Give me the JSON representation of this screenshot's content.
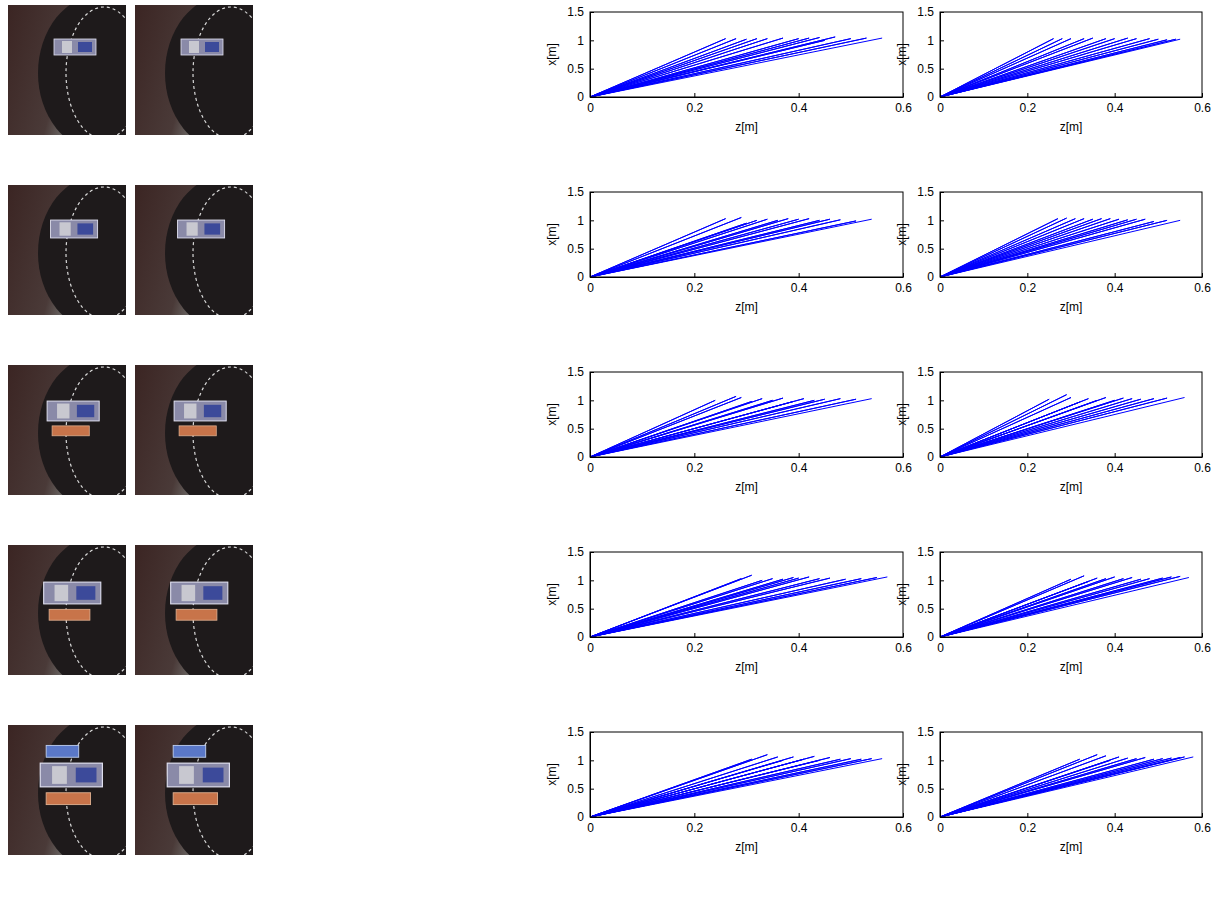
{
  "chart_data": [
    {
      "type": "line",
      "color": "#0000ff",
      "xlabel": "z[m]",
      "ylabel": "x[m]",
      "xlim": [
        0,
        0.6
      ],
      "ylim": [
        0,
        1.5
      ],
      "xticks": [
        0,
        0.2,
        0.4,
        0.6
      ],
      "yticks": [
        0,
        0.5,
        1,
        1.5
      ],
      "x": [
        0,
        0.26,
        0,
        0.28,
        0,
        0.3,
        0,
        0.32,
        0,
        0.34,
        0,
        0.37,
        0,
        0.4,
        0,
        0.42,
        0,
        0.44,
        0,
        0.47,
        0,
        0.45,
        0,
        0.5,
        0,
        0.53,
        0,
        0.56
      ],
      "values": [
        0,
        1.03,
        0,
        1.03,
        0,
        1.02,
        0,
        1.03,
        0,
        1.03,
        0,
        1.04,
        0,
        1.03,
        0,
        1.04,
        0,
        1.05,
        0,
        1.06,
        0,
        1,
        0,
        1.03,
        0,
        1.04,
        0,
        1.04
      ]
    },
    {
      "type": "line",
      "color": "#0000ff",
      "xlabel": "z[m]",
      "ylabel": "x[m]",
      "xlim": [
        0,
        0.6
      ],
      "ylim": [
        0,
        1.5
      ],
      "xticks": [
        0,
        0.2,
        0.4,
        0.6
      ],
      "yticks": [
        0,
        0.5,
        1,
        1.5
      ],
      "x": [
        0,
        0.26,
        0,
        0.28,
        0,
        0.3,
        0,
        0.33,
        0,
        0.35,
        0,
        0.38,
        0,
        0.4,
        0,
        0.43,
        0,
        0.45,
        0,
        0.48,
        0,
        0.5,
        0,
        0.52,
        0,
        0.54,
        0,
        0.55
      ],
      "values": [
        0,
        1.03,
        0,
        1.03,
        0,
        1.03,
        0,
        1.03,
        0,
        1.04,
        0,
        1.03,
        0,
        1.03,
        0,
        1.04,
        0,
        1.03,
        0,
        1.03,
        0,
        1.02,
        0,
        1.01,
        0,
        1.02,
        0,
        1.02
      ]
    },
    {
      "type": "line",
      "color": "#0000ff",
      "xlabel": "z[m]",
      "ylabel": "x[m]",
      "xlim": [
        0,
        0.6
      ],
      "ylim": [
        0,
        1.5
      ],
      "xticks": [
        0,
        0.2,
        0.4,
        0.6
      ],
      "yticks": [
        0,
        0.5,
        1,
        1.5
      ],
      "x": [
        0,
        0.26,
        0,
        0.29,
        0,
        0.3,
        0,
        0.32,
        0,
        0.34,
        0,
        0.36,
        0,
        0.38,
        0,
        0.4,
        0,
        0.42,
        0,
        0.44,
        0,
        0.46,
        0,
        0.48,
        0,
        0.51,
        0,
        0.54
      ],
      "values": [
        0,
        1.03,
        0,
        1.05,
        0,
        0.95,
        0,
        1,
        0,
        1.02,
        0,
        1,
        0,
        1.03,
        0,
        1.02,
        0,
        1.03,
        0,
        1,
        0,
        1.02,
        0,
        1.01,
        0,
        0.99,
        0,
        1.02
      ]
    },
    {
      "type": "line",
      "color": "#0000ff",
      "xlabel": "z[m]",
      "ylabel": "x[m]",
      "xlim": [
        0,
        0.6
      ],
      "ylim": [
        0,
        1.5
      ],
      "xticks": [
        0,
        0.2,
        0.4,
        0.6
      ],
      "yticks": [
        0,
        0.5,
        1,
        1.5
      ],
      "x": [
        0,
        0.27,
        0,
        0.29,
        0,
        0.31,
        0,
        0.33,
        0,
        0.35,
        0,
        0.37,
        0,
        0.39,
        0,
        0.41,
        0,
        0.43,
        0,
        0.45,
        0,
        0.47,
        0,
        0.49,
        0,
        0.52,
        0,
        0.55
      ],
      "values": [
        0,
        1.03,
        0,
        1.04,
        0,
        1.03,
        0,
        1.03,
        0,
        1.02,
        0,
        1.03,
        0,
        1.03,
        0,
        1.02,
        0,
        1.01,
        0,
        1.02,
        0,
        1.02,
        0,
        0.98,
        0,
        1,
        0,
        1
      ]
    },
    {
      "type": "line",
      "color": "#0000ff",
      "xlabel": "z[m]",
      "ylabel": "x[m]",
      "xlim": [
        0,
        0.6
      ],
      "ylim": [
        0,
        1.5
      ],
      "xticks": [
        0,
        0.2,
        0.4,
        0.6
      ],
      "yticks": [
        0,
        0.5,
        1,
        1.5
      ],
      "x": [
        0,
        0.24,
        0,
        0.28,
        0,
        0.29,
        0,
        0.31,
        0,
        0.33,
        0,
        0.35,
        0,
        0.37,
        0,
        0.39,
        0,
        0.41,
        0,
        0.43,
        0,
        0.45,
        0,
        0.48,
        0,
        0.51,
        0,
        0.54
      ],
      "values": [
        0,
        1,
        0,
        1.07,
        0,
        1.05,
        0,
        0.98,
        0,
        1.03,
        0,
        1,
        0,
        1.04,
        0,
        0.98,
        0,
        1.03,
        0,
        1,
        0,
        1.02,
        0,
        1.03,
        0,
        1.02,
        0,
        1.03
      ]
    },
    {
      "type": "line",
      "color": "#0000ff",
      "xlabel": "z[m]",
      "ylabel": "x[m]",
      "xlim": [
        0,
        0.6
      ],
      "ylim": [
        0,
        1.5
      ],
      "xticks": [
        0,
        0.2,
        0.4,
        0.6
      ],
      "yticks": [
        0,
        0.5,
        1,
        1.5
      ],
      "x": [
        0,
        0.25,
        0,
        0.29,
        0,
        0.3,
        0,
        0.32,
        0,
        0.34,
        0,
        0.36,
        0,
        0.38,
        0,
        0.4,
        0,
        0.42,
        0,
        0.44,
        0,
        0.46,
        0,
        0.49,
        0,
        0.52,
        0,
        0.56
      ],
      "values": [
        0,
        1.02,
        0,
        1.1,
        0,
        1.05,
        0,
        0.97,
        0,
        1.03,
        0,
        1,
        0,
        1.05,
        0,
        1,
        0,
        1.04,
        0,
        1.03,
        0,
        1.02,
        0,
        1.03,
        0,
        1.04,
        0,
        1.05
      ]
    },
    {
      "type": "line",
      "color": "#0000ff",
      "xlabel": "z[m]",
      "ylabel": "x[m]",
      "xlim": [
        0,
        0.6
      ],
      "ylim": [
        0,
        1.5
      ],
      "xticks": [
        0,
        0.2,
        0.4,
        0.6
      ],
      "yticks": [
        0,
        0.5,
        1,
        1.5
      ],
      "x": [
        0,
        0.29,
        0,
        0.31,
        0,
        0.33,
        0,
        0.35,
        0,
        0.37,
        0,
        0.39,
        0,
        0.4,
        0,
        0.42,
        0,
        0.44,
        0,
        0.46,
        0,
        0.49,
        0,
        0.52,
        0,
        0.55,
        0,
        0.57
      ],
      "values": [
        0,
        1.03,
        0,
        1.09,
        0,
        1,
        0,
        1.03,
        0,
        1.02,
        0,
        1.05,
        0,
        1.04,
        0,
        1.06,
        0,
        1.03,
        0,
        1.04,
        0,
        1.02,
        0,
        1.03,
        0,
        1.05,
        0,
        1.06
      ]
    },
    {
      "type": "line",
      "color": "#0000ff",
      "xlabel": "z[m]",
      "ylabel": "x[m]",
      "xlim": [
        0,
        0.6
      ],
      "ylim": [
        0,
        1.5
      ],
      "xticks": [
        0,
        0.2,
        0.4,
        0.6
      ],
      "yticks": [
        0,
        0.5,
        1,
        1.5
      ],
      "x": [
        0,
        0.3,
        0,
        0.33,
        0,
        0.34,
        0,
        0.36,
        0,
        0.38,
        0,
        0.4,
        0,
        0.42,
        0,
        0.44,
        0,
        0.46,
        0,
        0.48,
        0,
        0.51,
        0,
        0.53,
        0,
        0.55,
        0,
        0.57
      ],
      "values": [
        0,
        1.02,
        0,
        1.08,
        0,
        0.98,
        0,
        1.04,
        0,
        1.03,
        0,
        1.06,
        0,
        1.03,
        0,
        1.05,
        0,
        1.02,
        0,
        1.03,
        0,
        1.04,
        0,
        1.06,
        0,
        1.07,
        0,
        1.05
      ]
    },
    {
      "type": "line",
      "color": "#0000ff",
      "xlabel": "z[m]",
      "ylabel": "x[m]",
      "xlim": [
        0,
        0.6
      ],
      "ylim": [
        0,
        1.5
      ],
      "xticks": [
        0,
        0.2,
        0.4,
        0.6
      ],
      "yticks": [
        0,
        0.5,
        1,
        1.5
      ],
      "x": [
        0,
        0.31,
        0,
        0.34,
        0,
        0.36,
        0,
        0.37,
        0,
        0.39,
        0,
        0.41,
        0,
        0.43,
        0,
        0.44,
        0,
        0.46,
        0,
        0.48,
        0,
        0.5,
        0,
        0.52,
        0,
        0.54,
        0,
        0.56
      ],
      "values": [
        0,
        1.02,
        0,
        1.1,
        0,
        1.06,
        0,
        1,
        0,
        1.06,
        0,
        1.02,
        0,
        1.07,
        0,
        1,
        0,
        1.05,
        0,
        1.02,
        0,
        1.03,
        0,
        1.02,
        0,
        1.03,
        0,
        1.03
      ]
    },
    {
      "type": "line",
      "color": "#0000ff",
      "xlabel": "z[m]",
      "ylabel": "x[m]",
      "xlim": [
        0,
        0.6
      ],
      "ylim": [
        0,
        1.5
      ],
      "xticks": [
        0,
        0.2,
        0.4,
        0.6
      ],
      "yticks": [
        0,
        0.5,
        1,
        1.5
      ],
      "x": [
        0,
        0.32,
        0,
        0.36,
        0,
        0.38,
        0,
        0.39,
        0,
        0.41,
        0,
        0.43,
        0,
        0.45,
        0,
        0.47,
        0,
        0.49,
        0,
        0.51,
        0,
        0.53,
        0,
        0.55,
        0,
        0.56,
        0,
        0.58
      ],
      "values": [
        0,
        1.02,
        0,
        1.1,
        0,
        1.08,
        0,
        1,
        0,
        1.06,
        0,
        1.04,
        0,
        1.03,
        0,
        1.05,
        0,
        1.02,
        0,
        1.03,
        0,
        1.04,
        0,
        1.05,
        0,
        1.06,
        0,
        1.06
      ]
    }
  ]
}
